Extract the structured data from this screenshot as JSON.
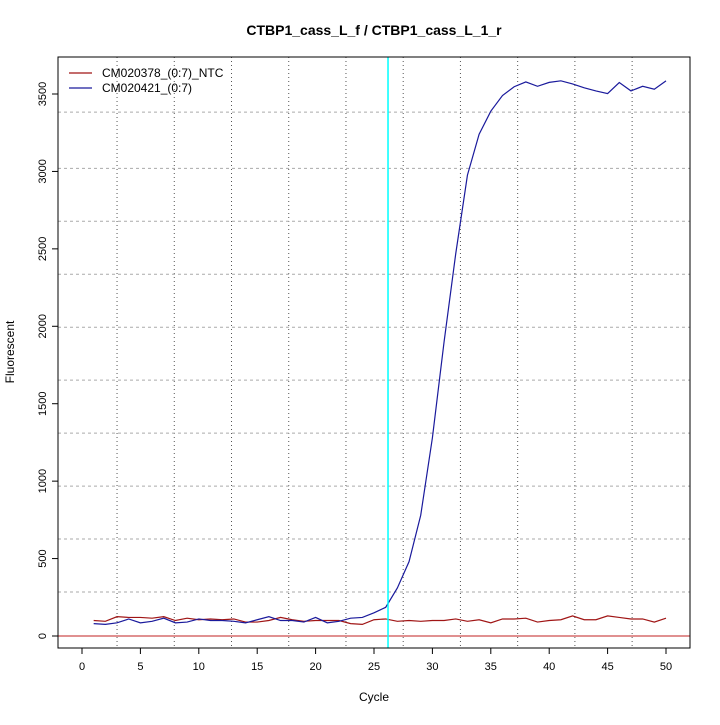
{
  "chart_data": {
    "type": "line",
    "title": "CTBP1_cass_L_f / CTBP1_cass_L_1_r",
    "xlabel": "Cycle",
    "ylabel": "Fluorescent",
    "xlim": [
      -2,
      52
    ],
    "ylim": [
      -70,
      3720
    ],
    "xticks": [
      0,
      5,
      10,
      15,
      20,
      25,
      30,
      35,
      40,
      45,
      50
    ],
    "yticks": [
      0,
      500,
      1000,
      1500,
      2000,
      2500,
      3000,
      3500
    ],
    "grid": true,
    "grid_x": [
      3.0,
      7.9,
      12.8,
      17.7,
      22.6,
      27.5,
      32.4,
      37.3,
      42.2,
      47.1
    ],
    "grid_y": [
      284,
      626,
      968,
      1310,
      1652,
      1994,
      2336,
      2678,
      3020,
      3383
    ],
    "legend_position": "top-left",
    "threshold": {
      "value": 0,
      "color": "#c02020"
    },
    "vertical_marker": {
      "x": 26.2,
      "color": "#00ffff"
    },
    "x": [
      1,
      2,
      3,
      4,
      5,
      6,
      7,
      8,
      9,
      10,
      11,
      12,
      13,
      14,
      15,
      16,
      17,
      18,
      19,
      20,
      21,
      22,
      23,
      24,
      25,
      26,
      27,
      28,
      29,
      30,
      31,
      32,
      33,
      34,
      35,
      36,
      37,
      38,
      39,
      40,
      41,
      42,
      43,
      44,
      45,
      46,
      47,
      48,
      49,
      50
    ],
    "series": [
      {
        "name": "CM020378_(0:7)_NTC",
        "color": "#a01515",
        "values": [
          100,
          95,
          125,
          120,
          120,
          115,
          125,
          100,
          115,
          105,
          110,
          105,
          110,
          90,
          90,
          100,
          120,
          105,
          95,
          100,
          100,
          100,
          80,
          75,
          105,
          110,
          95,
          100,
          95,
          100,
          100,
          110,
          95,
          105,
          85,
          110,
          110,
          115,
          90,
          100,
          105,
          130,
          105,
          105,
          130,
          120,
          110,
          110,
          90,
          115
        ]
      },
      {
        "name": "CM020421_(0:7)",
        "color": "#1a1a9c",
        "values": [
          80,
          75,
          85,
          110,
          85,
          95,
          115,
          85,
          90,
          110,
          100,
          100,
          95,
          85,
          105,
          125,
          100,
          100,
          90,
          120,
          85,
          95,
          115,
          120,
          150,
          185,
          310,
          480,
          780,
          1280,
          1900,
          2470,
          2976,
          3240,
          3389,
          3490,
          3547,
          3578,
          3550,
          3575,
          3585,
          3565,
          3540,
          3520,
          3503,
          3574,
          3520,
          3550,
          3531,
          3585
        ]
      }
    ]
  }
}
